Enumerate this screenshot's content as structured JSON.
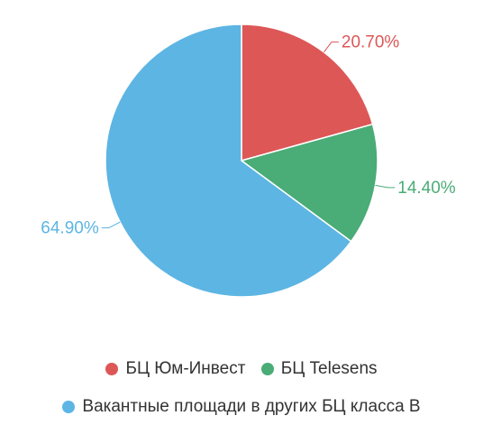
{
  "chart_data": {
    "type": "pie",
    "slices": [
      {
        "label": "БЦ Юм-Инвест",
        "value": 20.7,
        "display": "20.70%",
        "color": "#dd5757"
      },
      {
        "label": "БЦ Telesens",
        "value": 14.4,
        "display": "14.40%",
        "color": "#4aac76"
      },
      {
        "label": "Вакантные площади в других БЦ класса В",
        "value": 64.9,
        "display": "64.90%",
        "color": "#5db5e3"
      }
    ],
    "legend_position": "bottom"
  }
}
